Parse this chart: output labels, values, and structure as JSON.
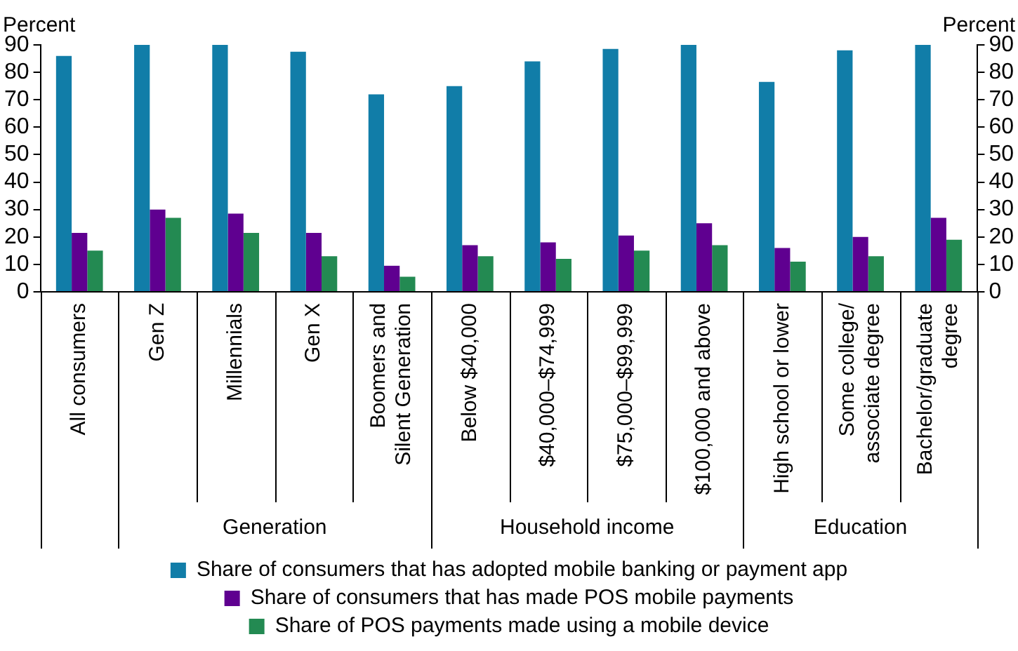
{
  "chart_data": {
    "type": "bar",
    "categories": [
      "All consumers",
      "Gen Z",
      "Millennials",
      "Gen X",
      "Boomers and Silent Generation",
      "Below $40,000",
      "$40,000–$74,999",
      "$75,000–$99,999",
      "$100,000 and above",
      "High school or lower",
      "Some college/ associate degree",
      "Bachelor/graduate degree"
    ],
    "series": [
      {
        "name": "Share of consumers that has adopted mobile banking or payment app",
        "color": "#117da8",
        "values": [
          86,
          90,
          90,
          87.5,
          72,
          75,
          84,
          88.5,
          90,
          76.5,
          88,
          90
        ]
      },
      {
        "name": "Share of consumers that has made POS mobile payments",
        "color": "#5f0090",
        "values": [
          21.5,
          30,
          28.5,
          21.5,
          9.5,
          17,
          18,
          20.5,
          25,
          16,
          20,
          27
        ]
      },
      {
        "name": "Share of POS payments made using a mobile device",
        "color": "#238a52",
        "values": [
          15,
          27,
          21.5,
          13,
          5.5,
          13,
          12,
          15,
          17,
          11,
          13,
          19
        ]
      }
    ],
    "ylabel": "Percent",
    "y2label": "Percent",
    "ylim": [
      0,
      90
    ],
    "yticks": [
      0,
      10,
      20,
      30,
      40,
      50,
      60,
      70,
      80,
      90
    ],
    "y2lim": [
      0,
      90
    ],
    "y2ticks": [
      0,
      10,
      20,
      30,
      40,
      50,
      60,
      70,
      80,
      90
    ],
    "annotations": [
      "Generation",
      "Household income",
      "Education"
    ],
    "grid": false,
    "legend": "bottom"
  }
}
